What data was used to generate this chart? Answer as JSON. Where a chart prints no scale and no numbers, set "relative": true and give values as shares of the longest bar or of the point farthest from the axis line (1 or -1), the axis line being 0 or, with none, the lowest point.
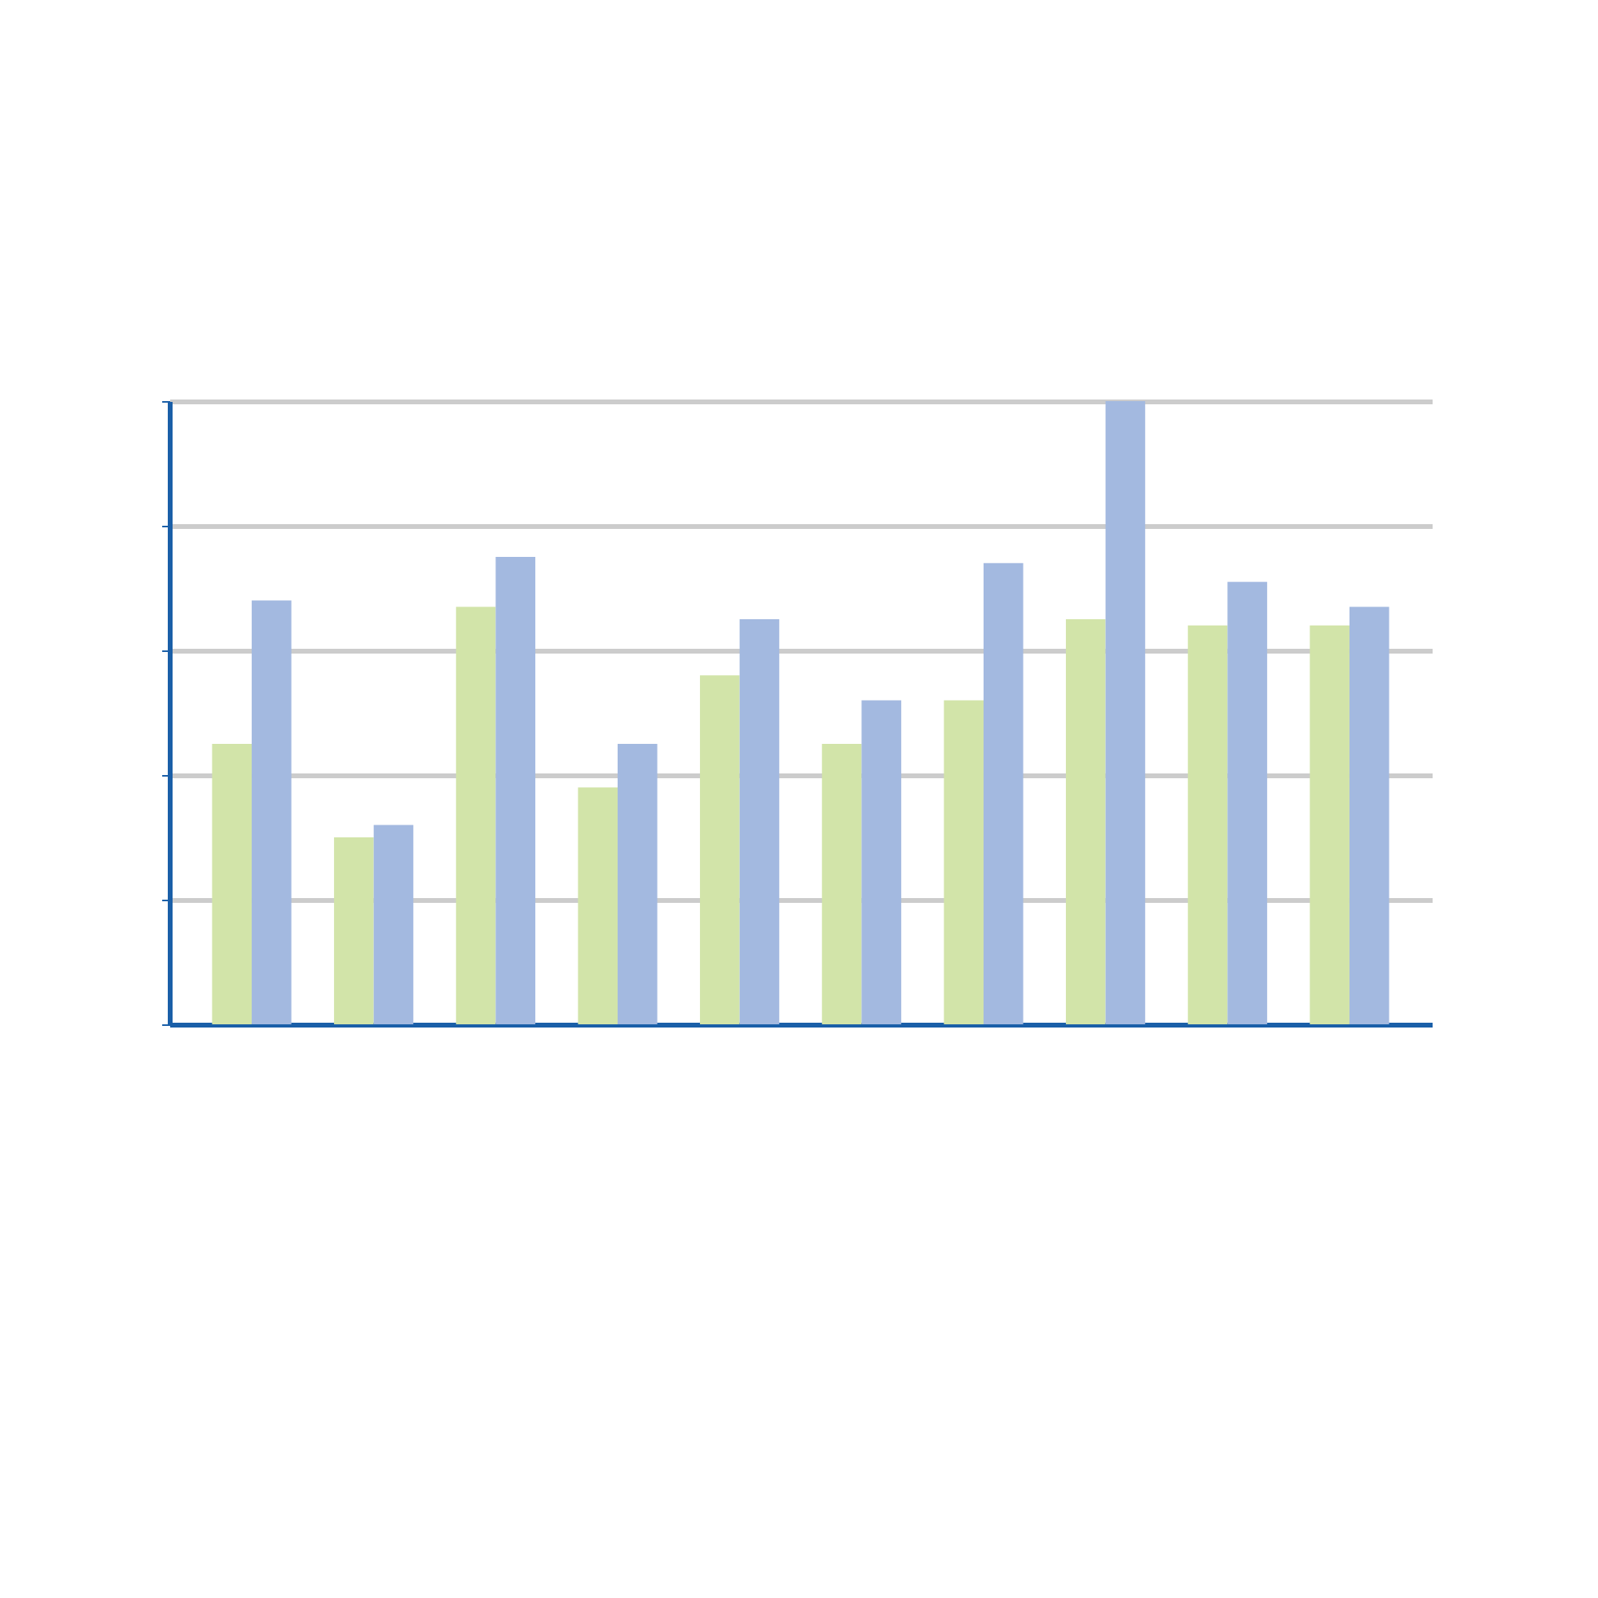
{
  "chart_data": {
    "type": "bar",
    "relative": true,
    "categories": [
      null,
      null,
      null,
      null,
      null,
      null,
      null,
      null,
      null,
      null
    ],
    "series": [
      {
        "color": "#d2e4a9",
        "values": [
          0.45,
          0.3,
          0.67,
          0.38,
          0.56,
          0.45,
          0.52,
          0.65,
          0.64,
          0.64
        ]
      },
      {
        "color": "#a3b9e0",
        "values": [
          0.68,
          0.32,
          0.75,
          0.45,
          0.65,
          0.52,
          0.74,
          1.0,
          0.71,
          0.67
        ]
      }
    ],
    "grid": "y"
  }
}
